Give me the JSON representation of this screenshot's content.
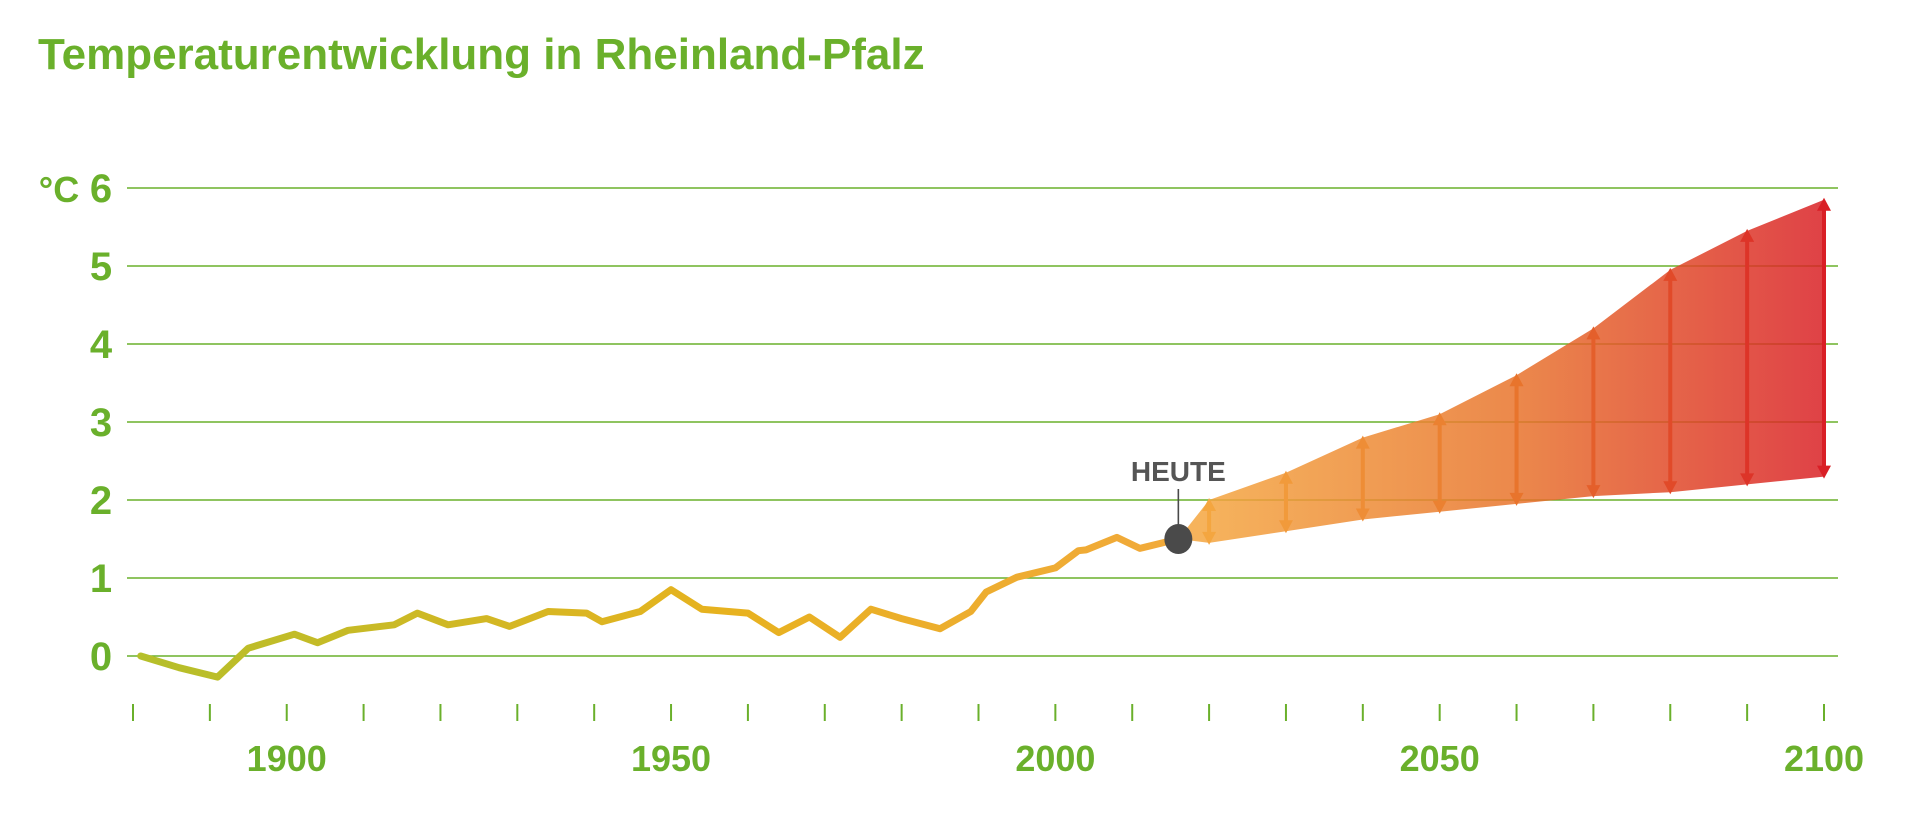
{
  "title": "Temperaturentwicklung in Rheinland-Pfalz",
  "colors": {
    "green": "#6ab02b",
    "history_start": "#b5bf2a",
    "history_mid": "#e7b21f",
    "history_end": "#f2a93c",
    "projection_low": "#f4a640",
    "projection_high": "#d91f26",
    "today_marker": "#4a4a4a"
  },
  "chart_data": {
    "type": "line",
    "ylabel": "°C",
    "ylim": [
      0,
      6
    ],
    "yticks": [
      "0",
      "1",
      "2",
      "3",
      "4",
      "5",
      "6"
    ],
    "xlim": [
      1880,
      2100
    ],
    "xticks": [
      "1900",
      "1950",
      "2000",
      "2050",
      "2100"
    ],
    "x_minor_ticks": [
      1880,
      1890,
      1900,
      1910,
      1920,
      1930,
      1940,
      1950,
      1960,
      1970,
      1980,
      1990,
      2000,
      2010,
      2020,
      2030,
      2040,
      2050,
      2060,
      2070,
      2080,
      2090,
      2100
    ],
    "grid": true,
    "history": {
      "x": [
        1881,
        1886,
        1891,
        1895,
        1901,
        1904,
        1908,
        1914,
        1917,
        1921,
        1926,
        1929,
        1934,
        1939,
        1941,
        1946,
        1950,
        1954,
        1960,
        1964,
        1968,
        1972,
        1976,
        1980,
        1985,
        1989,
        1991,
        1995,
        2000,
        2003,
        2004,
        2008,
        2011,
        2016
      ],
      "y": [
        0.0,
        -0.15,
        -0.27,
        0.1,
        0.28,
        0.17,
        0.33,
        0.4,
        0.55,
        0.4,
        0.48,
        0.38,
        0.57,
        0.55,
        0.44,
        0.57,
        0.85,
        0.6,
        0.55,
        0.3,
        0.5,
        0.24,
        0.6,
        0.48,
        0.35,
        0.57,
        0.82,
        1.01,
        1.13,
        1.35,
        1.36,
        1.52,
        1.38,
        1.5
      ]
    },
    "today": {
      "x": 2016,
      "y": 1.5,
      "label": "HEUTE"
    },
    "projection": {
      "x": [
        2020,
        2030,
        2040,
        2050,
        2060,
        2070,
        2080,
        2090,
        2100
      ],
      "low": [
        1.45,
        1.6,
        1.75,
        1.85,
        1.95,
        2.05,
        2.1,
        2.2,
        2.3
      ],
      "high": [
        2.0,
        2.35,
        2.8,
        3.1,
        3.6,
        4.2,
        4.95,
        5.45,
        5.85
      ]
    }
  }
}
